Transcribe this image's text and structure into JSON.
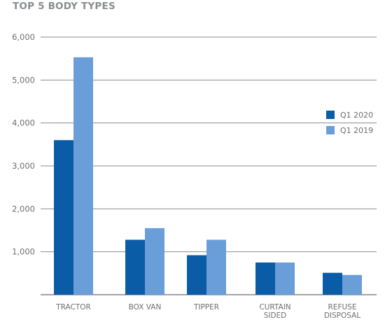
{
  "chart_data": {
    "type": "bar",
    "title": "TOP 5 BODY TYPES",
    "categories": [
      [
        "TRACTOR"
      ],
      [
        "BOX VAN"
      ],
      [
        "TIPPER"
      ],
      [
        "CURTAIN",
        "SIDED"
      ],
      [
        "REFUSE",
        "DISPOSAL"
      ]
    ],
    "series": [
      {
        "name": "Q1 2020",
        "color": "#0a5ca6",
        "values": [
          3600,
          1280,
          920,
          750,
          510
        ]
      },
      {
        "name": "Q1 2019",
        "color": "#6a9ed8",
        "values": [
          5530,
          1550,
          1280,
          750,
          460
        ]
      }
    ],
    "ylim": [
      0,
      6000
    ],
    "yticks": [
      1000,
      2000,
      3000,
      4000,
      5000,
      6000
    ],
    "ytick_labels": [
      "1,000",
      "2,000",
      "3,000",
      "4,000",
      "5,000",
      "6,000"
    ],
    "grid": true,
    "legend_position": "right",
    "xlabel": "",
    "ylabel": ""
  }
}
